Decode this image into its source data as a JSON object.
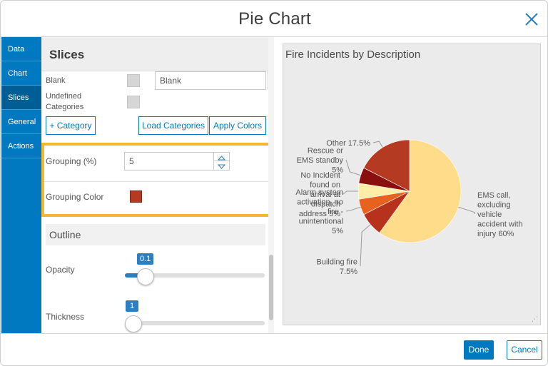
{
  "dialog": {
    "title": "Pie Chart",
    "close_icon": "close-icon"
  },
  "nav": {
    "items": [
      {
        "label": "Data"
      },
      {
        "label": "Chart"
      },
      {
        "label": "Slices"
      },
      {
        "label": "General"
      },
      {
        "label": "Actions"
      }
    ],
    "active": "Slices"
  },
  "slices": {
    "heading": "Slices",
    "blank_label": "Blank",
    "blank_value": "Blank",
    "undefined_label": "Undefined Categories",
    "add_category": "+ Category",
    "load_categories": "Load Categories",
    "apply_colors": "Apply Colors",
    "grouping_label": "Grouping (%)",
    "grouping_value": "5",
    "grouping_color_label": "Grouping Color",
    "grouping_color": "#b53a22",
    "outline_heading": "Outline",
    "opacity_label": "Opacity",
    "opacity_value": "0.1",
    "opacity_fraction": 0.1,
    "thickness_label": "Thickness",
    "thickness_value": "1",
    "thickness_fraction": 0.0
  },
  "annotation": {
    "arrow_color": "#f5b731",
    "highlight_color": "#f5b731"
  },
  "chart_data": {
    "type": "pie",
    "title": "Fire Incidents by Description",
    "start_angle_deg": 270,
    "slices": [
      {
        "label": "EMS call, excluding vehicle accident with injury 60%",
        "value": 60,
        "color": "#ffdc8a"
      },
      {
        "label": "Building fire 7.5%",
        "value": 7.5,
        "color": "#b7321c"
      },
      {
        "label": "Alarm system activation, no fire - unintentional 5%",
        "value": 5,
        "color": "#e8621f"
      },
      {
        "label": "No Incident found on arrival at dispatch address 5%",
        "value": 5,
        "color": "#ffeea8"
      },
      {
        "label": "Rescue or EMS standby 5%",
        "value": 5,
        "color": "#8a1010"
      },
      {
        "label": "Other 17.5%",
        "value": 17.5,
        "color": "#b53a22"
      }
    ],
    "labels": [
      {
        "lines": [
          "EMS call,",
          "excluding",
          "vehicle",
          "accident with",
          "injury 60%"
        ]
      },
      {
        "lines": [
          "Building fire",
          "7.5%"
        ]
      },
      {
        "lines": [
          "Alarm system",
          "activation, no",
          "fire -",
          "unintentional",
          "5%"
        ]
      },
      {
        "lines": [
          "No Incident",
          "found on",
          "arrival at",
          "dispatch",
          "address 5%"
        ]
      },
      {
        "lines": [
          "Rescue or",
          "EMS standby",
          "5%"
        ]
      },
      {
        "lines": [
          "Other 17.5%"
        ]
      }
    ]
  },
  "footer": {
    "done": "Done",
    "cancel": "Cancel"
  }
}
